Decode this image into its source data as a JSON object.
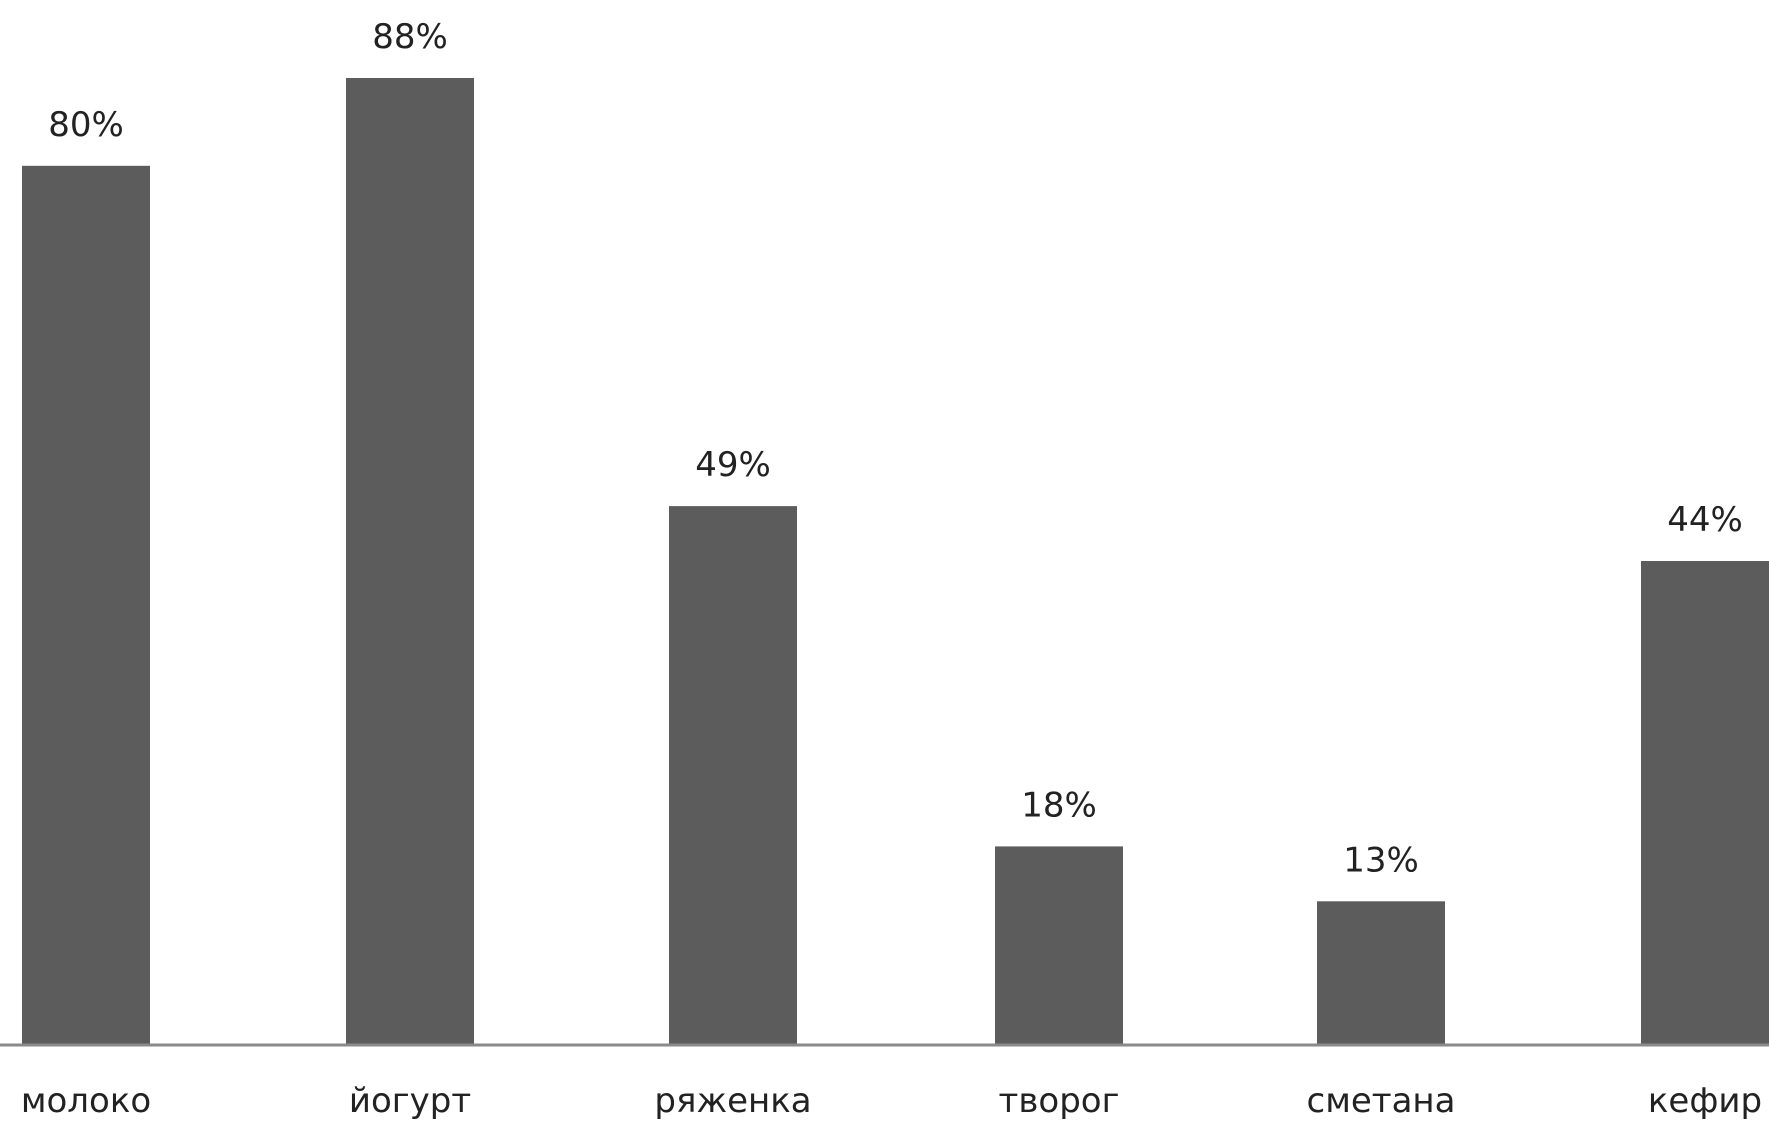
{
  "chart_data": {
    "type": "bar",
    "categories": [
      "молоко",
      "йогурт",
      "ряженка",
      "творог",
      "сметана",
      "кефир"
    ],
    "values": [
      80,
      88,
      49,
      18,
      13,
      44
    ],
    "value_labels": [
      "80%",
      "88%",
      "49%",
      "18%",
      "13%",
      "44%"
    ],
    "ylim": [
      0,
      100
    ],
    "grid": false,
    "legend": "none"
  },
  "colors": {
    "bar": "#5c5c5c",
    "axis": "#8a8a8a",
    "text": "#222222",
    "background": "#ffffff"
  }
}
